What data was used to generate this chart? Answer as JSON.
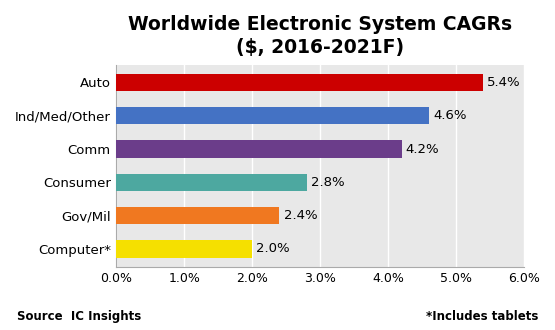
{
  "title": "Worldwide Electronic System CAGRs\n($, 2016-2021F)",
  "categories": [
    "Computer*",
    "Gov/Mil",
    "Consumer",
    "Comm",
    "Ind/Med/Other",
    "Auto"
  ],
  "values": [
    2.0,
    2.4,
    2.8,
    4.2,
    4.6,
    5.4
  ],
  "labels": [
    "2.0%",
    "2.4%",
    "2.8%",
    "4.2%",
    "4.6%",
    "5.4%"
  ],
  "colors": [
    "#f5e000",
    "#f07820",
    "#4da8a0",
    "#6b3d8a",
    "#4472c4",
    "#cc0000"
  ],
  "xlim": [
    0,
    6.0
  ],
  "xticks": [
    0.0,
    1.0,
    2.0,
    3.0,
    4.0,
    5.0,
    6.0
  ],
  "xtick_labels": [
    "0.0%",
    "1.0%",
    "2.0%",
    "3.0%",
    "4.0%",
    "5.0%",
    "6.0%"
  ],
  "source_text": "Source  IC Insights",
  "footnote_text": "*Includes tablets",
  "title_fontsize": 13.5,
  "label_fontsize": 9.5,
  "tick_fontsize": 9,
  "bar_height": 0.52,
  "fig_background": "#ffffff",
  "ax_background": "#e8e8e8"
}
